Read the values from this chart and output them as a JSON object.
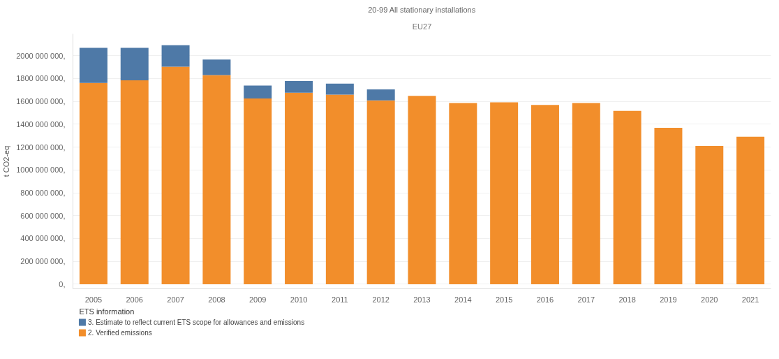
{
  "chart_data": {
    "type": "bar",
    "stacked": true,
    "title": "20-99 All stationary installations",
    "subtitle": "EU27",
    "ylabel": "t CO2-eq",
    "legend_title": "ETS information",
    "legend": "bottom left",
    "grid": "y",
    "categories": [
      "2005",
      "2006",
      "2007",
      "2008",
      "2009",
      "2010",
      "2011",
      "2012",
      "2013",
      "2014",
      "2015",
      "2016",
      "2017",
      "2018",
      "2019",
      "2020",
      "2021"
    ],
    "series": [
      {
        "name": "2. Verified emissions",
        "color": "#f28e2b",
        "values": [
          1761000000,
          1784000000,
          1903000000,
          1829000000,
          1625000000,
          1676000000,
          1659000000,
          1608000000,
          1648000000,
          1585000000,
          1591000000,
          1568000000,
          1585000000,
          1517000000,
          1369000000,
          1210000000,
          1290000000
        ]
      },
      {
        "name": "3. Estimate to reflect current ETS scope for allowances and emissions",
        "color": "#4e79a7",
        "values": [
          307000000,
          284000000,
          188000000,
          137000000,
          113000000,
          102000000,
          96000000,
          96000000,
          null,
          null,
          null,
          null,
          null,
          null,
          null,
          null,
          null
        ]
      }
    ],
    "ylim": [
      -40000000,
      2190000000
    ],
    "yticks": [
      {
        "value": 0,
        "label": "0,"
      },
      {
        "value": 200000000,
        "label": "200 000 000,"
      },
      {
        "value": 400000000,
        "label": "400 000 000,"
      },
      {
        "value": 600000000,
        "label": "600 000 000,"
      },
      {
        "value": 800000000,
        "label": "800 000 000,"
      },
      {
        "value": 1000000000,
        "label": "1000 000 000,"
      },
      {
        "value": 1200000000,
        "label": "1200 000 000,"
      },
      {
        "value": 1400000000,
        "label": "1400 000 000,"
      },
      {
        "value": 1600000000,
        "label": "1600 000 000,"
      },
      {
        "value": 1800000000,
        "label": "1800 000 000,"
      },
      {
        "value": 2000000000,
        "label": "2000 000 000,"
      }
    ]
  }
}
